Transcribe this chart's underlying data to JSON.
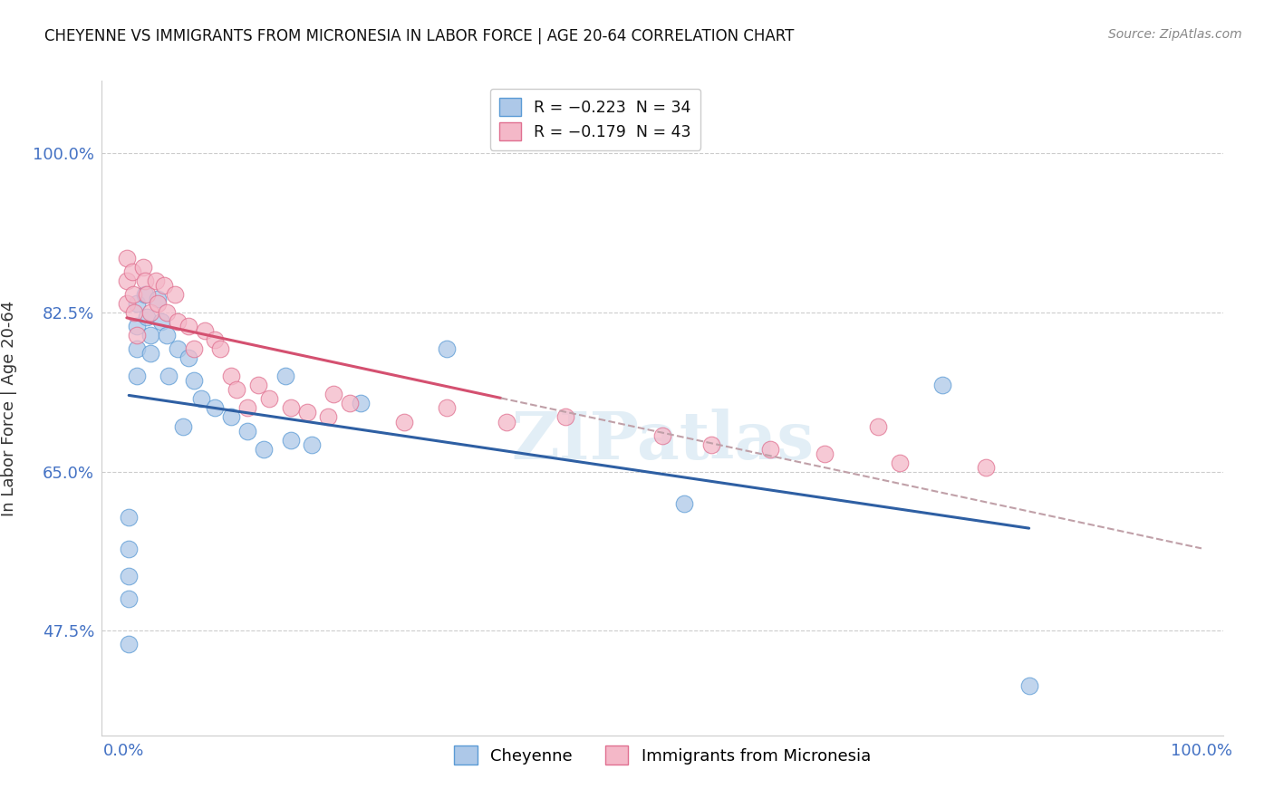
{
  "title": "CHEYENNE VS IMMIGRANTS FROM MICRONESIA IN LABOR FORCE | AGE 20-64 CORRELATION CHART",
  "source": "Source: ZipAtlas.com",
  "ylabel": "In Labor Force | Age 20-64",
  "xlim": [
    -0.02,
    1.02
  ],
  "ylim": [
    0.36,
    1.08
  ],
  "yticks": [
    0.475,
    0.65,
    0.825,
    1.0
  ],
  "ytick_labels": [
    "47.5%",
    "65.0%",
    "82.5%",
    "100.0%"
  ],
  "xtick_labels": [
    "0.0%",
    "100.0%"
  ],
  "xtick_positions": [
    0.0,
    1.0
  ],
  "legend_label_chey": "R = −0.223  N = 34",
  "legend_label_mic": "R = −0.179  N = 43",
  "cheyenne_fill": "#adc8e8",
  "cheyenne_edge": "#5b9bd5",
  "micronesia_fill": "#f4b8c8",
  "micronesia_edge": "#e07090",
  "cheyenne_line_color": "#2e5fa3",
  "micronesia_line_color": "#d45070",
  "dashed_line_color": "#c0a0a8",
  "watermark_color": "#d0e4f0",
  "cheyenne_x": [
    0.005,
    0.005,
    0.005,
    0.005,
    0.005,
    0.012,
    0.012,
    0.012,
    0.012,
    0.02,
    0.022,
    0.025,
    0.025,
    0.032,
    0.035,
    0.04,
    0.042,
    0.05,
    0.055,
    0.06,
    0.065,
    0.072,
    0.085,
    0.1,
    0.115,
    0.13,
    0.15,
    0.155,
    0.175,
    0.22,
    0.3,
    0.52,
    0.76,
    0.84
  ],
  "cheyenne_y": [
    0.6,
    0.565,
    0.535,
    0.51,
    0.46,
    0.835,
    0.81,
    0.785,
    0.755,
    0.845,
    0.82,
    0.8,
    0.78,
    0.84,
    0.815,
    0.8,
    0.755,
    0.785,
    0.7,
    0.775,
    0.75,
    0.73,
    0.72,
    0.71,
    0.695,
    0.675,
    0.755,
    0.685,
    0.68,
    0.725,
    0.785,
    0.615,
    0.745,
    0.415
  ],
  "micronesia_x": [
    0.003,
    0.003,
    0.003,
    0.008,
    0.009,
    0.01,
    0.012,
    0.018,
    0.02,
    0.022,
    0.025,
    0.03,
    0.032,
    0.038,
    0.04,
    0.048,
    0.05,
    0.06,
    0.065,
    0.075,
    0.085,
    0.09,
    0.1,
    0.105,
    0.115,
    0.125,
    0.135,
    0.155,
    0.17,
    0.19,
    0.195,
    0.21,
    0.26,
    0.3,
    0.355,
    0.41,
    0.5,
    0.545,
    0.6,
    0.65,
    0.7,
    0.72,
    0.8
  ],
  "micronesia_y": [
    0.885,
    0.86,
    0.835,
    0.87,
    0.845,
    0.825,
    0.8,
    0.875,
    0.86,
    0.845,
    0.825,
    0.86,
    0.835,
    0.855,
    0.825,
    0.845,
    0.815,
    0.81,
    0.785,
    0.805,
    0.795,
    0.785,
    0.755,
    0.74,
    0.72,
    0.745,
    0.73,
    0.72,
    0.715,
    0.71,
    0.735,
    0.725,
    0.705,
    0.72,
    0.705,
    0.71,
    0.69,
    0.68,
    0.675,
    0.67,
    0.7,
    0.66,
    0.655
  ]
}
